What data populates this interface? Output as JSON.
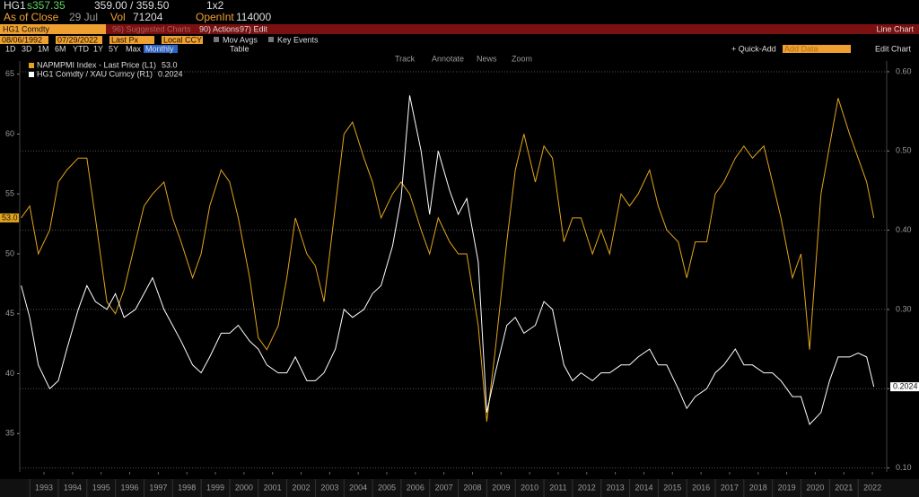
{
  "header": {
    "ticker": "HG1",
    "price": "s357.35",
    "bid_ask": "359.00 / 359.50",
    "size": "1x2",
    "as_of": "As of Close",
    "date": "29 Jul",
    "vol_label": "Vol",
    "vol": "71204",
    "openint_label": "OpenInt",
    "openint": "114000"
  },
  "menu_bar": {
    "security": "HG1 Comdty",
    "suggested": "96) Suggested Charts",
    "actions": "90) Actions",
    "edit": "97) Edit",
    "mode": "Line Chart"
  },
  "settings_bar": {
    "start_date": "08/06/1992",
    "end_date": "07/29/2022",
    "field": "Last Px",
    "currency": "Local CCY",
    "mov_avgs": "Mov Avgs",
    "key_events": "Key Events"
  },
  "period_bar": {
    "periods": [
      "1D",
      "3D",
      "1M",
      "6M",
      "YTD",
      "1Y",
      "5Y",
      "Max"
    ],
    "frequency": "Monthly",
    "table": "Table",
    "quick_add": "+ Quick-Add",
    "add_data": "Add Data",
    "edit_chart": "Edit Chart"
  },
  "chart_tools": [
    "Track",
    "Annotate",
    "News",
    "Zoom"
  ],
  "chart_data": {
    "type": "line",
    "x": [
      1992.7,
      1993.0,
      1993.3,
      1993.7,
      1994.0,
      1994.3,
      1994.7,
      1995.0,
      1995.3,
      1995.7,
      1996.0,
      1996.3,
      1996.7,
      1997.0,
      1997.3,
      1997.7,
      1998.0,
      1998.3,
      1998.7,
      1999.0,
      1999.3,
      1999.7,
      2000.0,
      2000.3,
      2000.7,
      2001.0,
      2001.3,
      2001.7,
      2002.0,
      2002.3,
      2002.7,
      2003.0,
      2003.3,
      2003.7,
      2004.0,
      2004.3,
      2004.7,
      2005.0,
      2005.3,
      2005.7,
      2006.0,
      2006.3,
      2006.7,
      2007.0,
      2007.3,
      2007.7,
      2008.0,
      2008.3,
      2008.7,
      2009.0,
      2009.3,
      2009.7,
      2010.0,
      2010.3,
      2010.7,
      2011.0,
      2011.3,
      2011.7,
      2012.0,
      2012.3,
      2012.7,
      2013.0,
      2013.3,
      2013.7,
      2014.0,
      2014.3,
      2014.7,
      2015.0,
      2015.3,
      2015.7,
      2016.0,
      2016.3,
      2016.7,
      2017.0,
      2017.3,
      2017.7,
      2018.0,
      2018.3,
      2018.7,
      2019.0,
      2019.3,
      2019.7,
      2020.0,
      2020.3,
      2020.7,
      2021.0,
      2021.3,
      2021.7,
      2022.0,
      2022.3,
      2022.55
    ],
    "series": [
      {
        "name": "NAPMPMI Index - Last Price (L1)",
        "color": "#e3a51c",
        "last_label": "53.0",
        "values": [
          53,
          54,
          50,
          52,
          56,
          57,
          58,
          58,
          53,
          46,
          45,
          47,
          51,
          54,
          55,
          56,
          53,
          51,
          48,
          50,
          54,
          57,
          56,
          53,
          48,
          43,
          42,
          44,
          48,
          53,
          50,
          49,
          46,
          54,
          60,
          61,
          58,
          56,
          53,
          55,
          56,
          55,
          52,
          50,
          53,
          51,
          50,
          50,
          44,
          36,
          42,
          51,
          57,
          60,
          56,
          59,
          58,
          51,
          53,
          53,
          50,
          52,
          50,
          55,
          54,
          55,
          57,
          54,
          52,
          51,
          48,
          51,
          51,
          55,
          56,
          58,
          59,
          58,
          59,
          56,
          53,
          48,
          50,
          42,
          55,
          59,
          63,
          60,
          58,
          56,
          53
        ]
      },
      {
        "name": "HG1 Comdty / XAU Curncy (R1)",
        "color": "#ffffff",
        "axis": "y2",
        "values": [
          0.33,
          0.29,
          0.23,
          0.2,
          0.21,
          0.25,
          0.3,
          0.33,
          0.31,
          0.3,
          0.32,
          0.29,
          0.3,
          0.32,
          0.34,
          0.3,
          0.28,
          0.26,
          0.23,
          0.22,
          0.24,
          0.27,
          0.27,
          0.28,
          0.26,
          0.25,
          0.23,
          0.22,
          0.22,
          0.24,
          0.21,
          0.21,
          0.22,
          0.25,
          0.3,
          0.29,
          0.3,
          0.32,
          0.33,
          0.38,
          0.44,
          0.57,
          0.5,
          0.42,
          0.5,
          0.45,
          0.42,
          0.44,
          0.36,
          0.17,
          0.22,
          0.28,
          0.29,
          0.27,
          0.28,
          0.31,
          0.3,
          0.23,
          0.21,
          0.22,
          0.21,
          0.22,
          0.22,
          0.23,
          0.23,
          0.24,
          0.25,
          0.23,
          0.23,
          0.2,
          0.175,
          0.19,
          0.2,
          0.22,
          0.23,
          0.25,
          0.23,
          0.23,
          0.22,
          0.22,
          0.21,
          0.19,
          0.19,
          0.155,
          0.17,
          0.21,
          0.24,
          0.24,
          0.245,
          0.24,
          0.2024
        ]
      }
    ],
    "xlim": [
      1992.65,
      2023.0
    ],
    "xticks": [
      {
        "value": 1993.5,
        "label": "1993"
      },
      {
        "value": 1994.5,
        "label": "1994"
      },
      {
        "value": 1995.5,
        "label": "1995"
      },
      {
        "value": 1996.5,
        "label": "1996"
      },
      {
        "value": 1997.5,
        "label": "1997"
      },
      {
        "value": 1998.5,
        "label": "1998"
      },
      {
        "value": 1999.5,
        "label": "1999"
      },
      {
        "value": 2000.5,
        "label": "2000"
      },
      {
        "value": 2001.5,
        "label": "2001"
      },
      {
        "value": 2002.5,
        "label": "2002"
      },
      {
        "value": 2003.5,
        "label": "2003"
      },
      {
        "value": 2004.5,
        "label": "2004"
      },
      {
        "value": 2005.5,
        "label": "2005"
      },
      {
        "value": 2006.5,
        "label": "2006"
      },
      {
        "value": 2007.5,
        "label": "2007"
      },
      {
        "value": 2008.5,
        "label": "2008"
      },
      {
        "value": 2009.5,
        "label": "2009"
      },
      {
        "value": 2010.5,
        "label": "2010"
      },
      {
        "value": 2011.5,
        "label": "2011"
      },
      {
        "value": 2012.5,
        "label": "2012"
      },
      {
        "value": 2013.5,
        "label": "2013"
      },
      {
        "value": 2014.5,
        "label": "2014"
      },
      {
        "value": 2015.5,
        "label": "2015"
      },
      {
        "value": 2016.5,
        "label": "2016"
      },
      {
        "value": 2017.5,
        "label": "2017"
      },
      {
        "value": 2018.5,
        "label": "2018"
      },
      {
        "value": 2019.5,
        "label": "2019"
      },
      {
        "value": 2020.5,
        "label": "2020"
      },
      {
        "value": 2021.5,
        "label": "2021"
      },
      {
        "value": 2022.5,
        "label": "2022"
      }
    ],
    "ylim": [
      31.8,
      65.8
    ],
    "yticks": [
      35,
      40,
      45,
      50,
      55,
      60,
      65
    ],
    "y2lim": [
      0.095,
      0.609
    ],
    "y2ticks": [
      {
        "value": 0.1,
        "label": "0.10"
      },
      {
        "value": 0.2,
        "label": "0.20"
      },
      {
        "value": 0.3,
        "label": "0.30"
      },
      {
        "value": 0.4,
        "label": "0.40"
      },
      {
        "value": 0.5,
        "label": "0.50"
      },
      {
        "value": 0.6,
        "label": "0.60"
      }
    ],
    "grid": "y2"
  }
}
